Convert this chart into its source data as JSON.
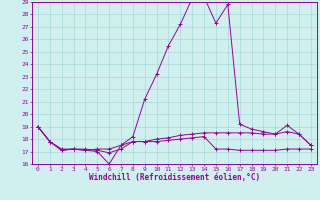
{
  "xlabel": "Windchill (Refroidissement éolien,°C)",
  "x": [
    0,
    1,
    2,
    3,
    4,
    5,
    6,
    7,
    8,
    9,
    10,
    11,
    12,
    13,
    14,
    15,
    16,
    17,
    18,
    19,
    20,
    21,
    22,
    23
  ],
  "line1": [
    19.0,
    17.8,
    17.1,
    17.2,
    17.1,
    17.0,
    16.0,
    17.5,
    18.2,
    21.2,
    23.2,
    25.5,
    27.2,
    29.3,
    29.4,
    27.3,
    28.8,
    19.2,
    18.8,
    18.6,
    18.4,
    19.1,
    18.4,
    17.5
  ],
  "line2": [
    19.0,
    17.8,
    17.1,
    17.2,
    17.1,
    17.2,
    17.2,
    17.5,
    17.8,
    17.8,
    18.0,
    18.1,
    18.3,
    18.4,
    18.5,
    18.5,
    18.5,
    18.5,
    18.5,
    18.4,
    18.4,
    18.6,
    18.4,
    17.5
  ],
  "line3": [
    19.0,
    17.8,
    17.2,
    17.2,
    17.2,
    17.1,
    16.9,
    17.2,
    17.8,
    17.8,
    17.8,
    17.9,
    18.0,
    18.1,
    18.2,
    17.2,
    17.2,
    17.1,
    17.1,
    17.1,
    17.1,
    17.2,
    17.2,
    17.2
  ],
  "line_color": "#990099",
  "bg_color": "#d0f0f0",
  "grid_color": "#a8d8d8",
  "ylim": [
    16,
    29
  ],
  "xlim": [
    -0.5,
    23.5
  ],
  "yticks": [
    16,
    17,
    18,
    19,
    20,
    21,
    22,
    23,
    24,
    25,
    26,
    27,
    28,
    29
  ],
  "xticks": [
    0,
    1,
    2,
    3,
    4,
    5,
    6,
    7,
    8,
    9,
    10,
    11,
    12,
    13,
    14,
    15,
    16,
    17,
    18,
    19,
    20,
    21,
    22,
    23
  ],
  "xlabel_fontsize": 5.5,
  "tick_fontsize": 4.5
}
